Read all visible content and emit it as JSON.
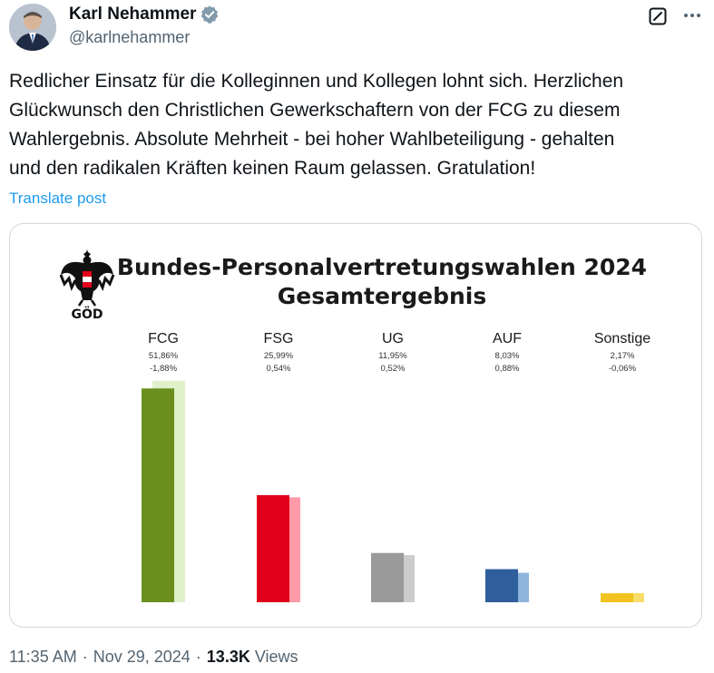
{
  "post": {
    "author": {
      "display_name": "Karl Nehammer",
      "handle": "@karlnehammer"
    },
    "text": "Redlicher Einsatz für die Kolleginnen und Kollegen lohnt sich. Herzlichen\nGlückwunsch den Christlichen Gewerkschaftern von der FCG zu diesem\nWahlergebnis. Absolute Mehrheit - bei hoher Wahlbeteiligung - gehalten\nund den radikalen Kräften keinen Raum gelassen. Gratulation!",
    "translate_label": "Translate post",
    "time": "11:35 AM",
    "date": "Nov 29, 2024",
    "separator": "·",
    "views_count": "13.3K",
    "views_label": "Views",
    "icons": {
      "verified": "verified-badge-icon",
      "grok": "grok-icon",
      "more": "more-icon"
    },
    "colors": {
      "link": "#1d9bf0",
      "verified": "#829aab",
      "secondary_text": "#536471"
    }
  },
  "media": {
    "logo_text": "GÖD",
    "title_line1": "Bundes-Personalvertretungswahlen 2024",
    "title_line2": "Gesamtergebnis"
  },
  "chart_data": {
    "type": "bar",
    "title": "Bundes-Personalvertretungswahlen 2024",
    "subtitle": "Gesamtergebnis",
    "categories": [
      "FCG",
      "FSG",
      "UG",
      "AUF",
      "Sonstige"
    ],
    "value_labels": [
      "51,86%",
      "25,99%",
      "11,95%",
      "8,03%",
      "2,17%"
    ],
    "change_labels": [
      "-1,88%",
      "0,54%",
      "0,52%",
      "0,88%",
      "-0,06%"
    ],
    "series": [
      {
        "values": [
          51.86,
          25.99,
          11.95,
          8.03,
          2.17
        ]
      },
      {
        "values": [
          53.74,
          25.45,
          11.43,
          7.15,
          2.23
        ]
      }
    ],
    "colors": [
      "#6a8f1e",
      "#e2001a",
      "#9a9a9a",
      "#2e5f9c",
      "#f2c320"
    ],
    "light_colors": [
      "#dff0cb",
      "#ff9aa8",
      "#cccccc",
      "#8fb4dc",
      "#f7de6a"
    ],
    "ylim": [
      0,
      55
    ]
  }
}
